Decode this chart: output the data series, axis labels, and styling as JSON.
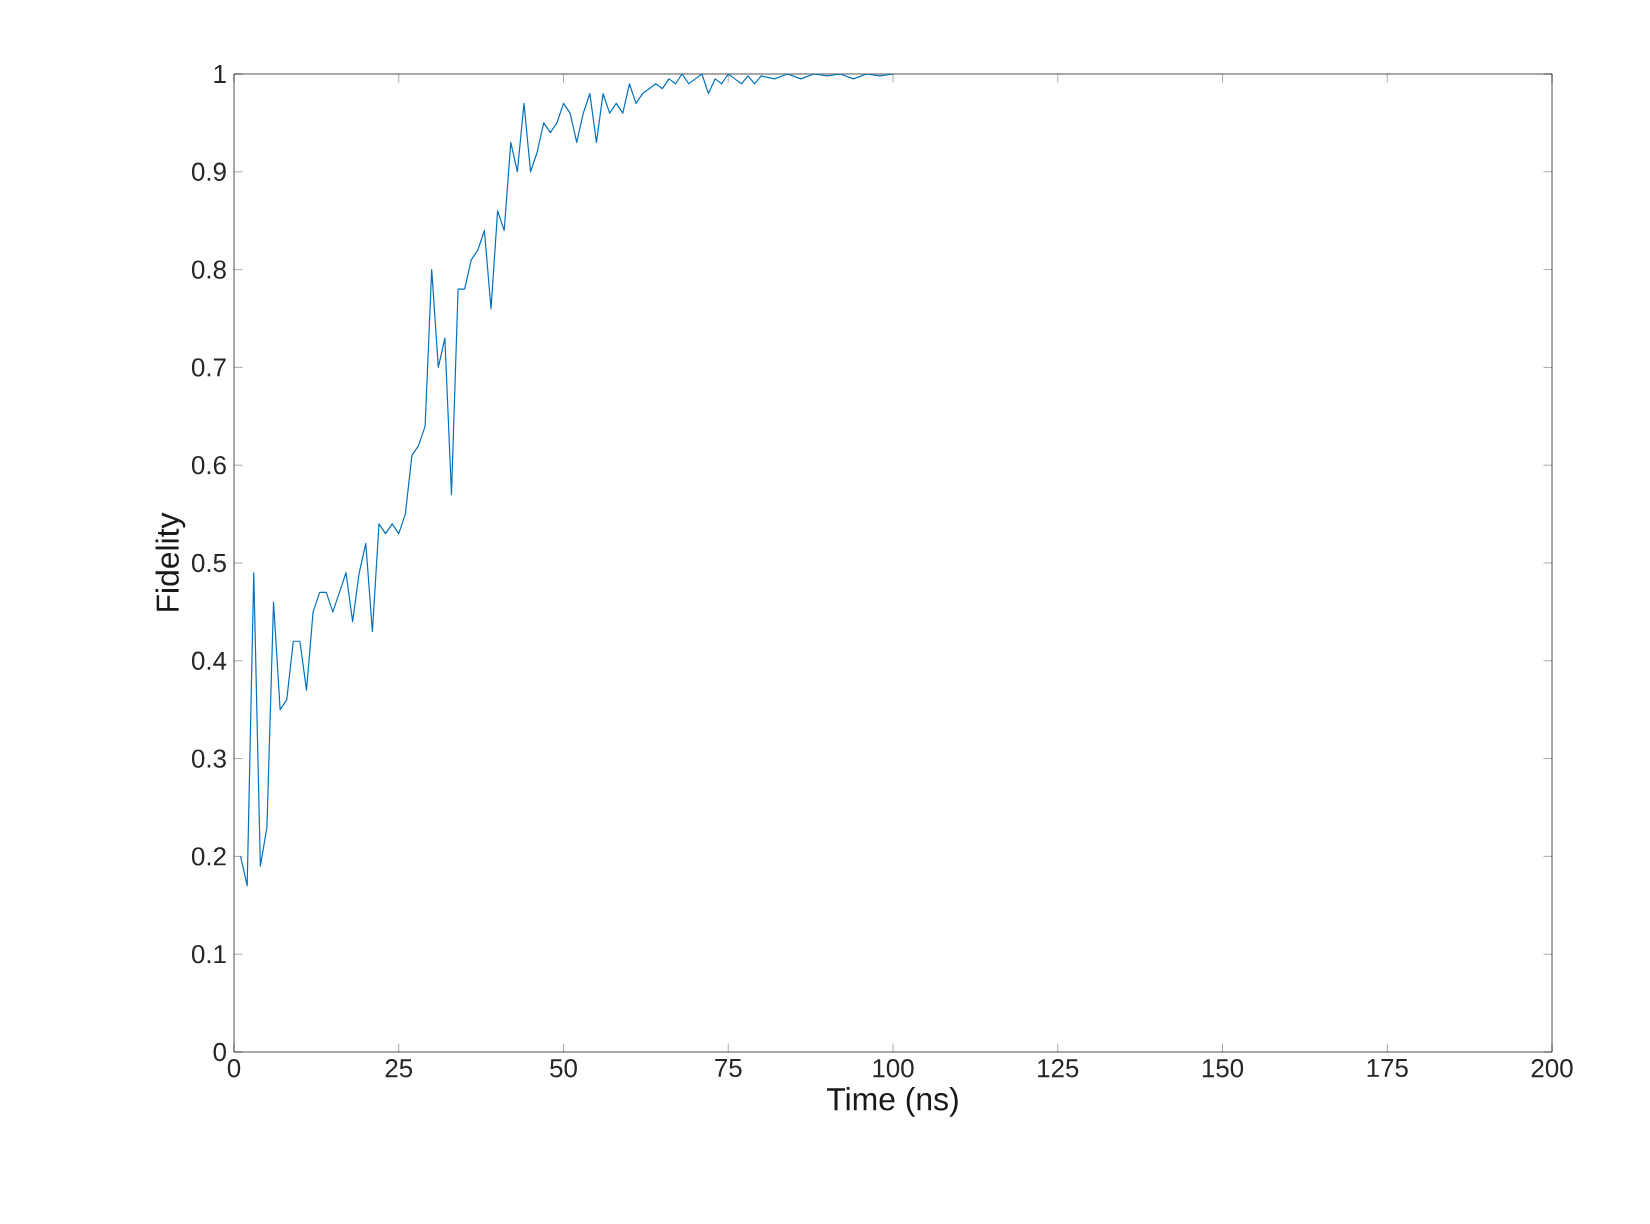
{
  "chart_data": {
    "type": "line",
    "xlabel": "Time (ns)",
    "ylabel": "Fidelity",
    "grid": false,
    "marker": "none",
    "line_style": "solid",
    "xlim": [
      0,
      200
    ],
    "ylim": [
      0,
      1
    ],
    "xticks": [
      0,
      25,
      50,
      75,
      100,
      125,
      150,
      175,
      200
    ],
    "yticks": [
      0,
      0.1,
      0.2,
      0.3,
      0.4,
      0.5,
      0.6,
      0.7,
      0.8,
      0.9,
      1
    ],
    "series": [
      {
        "color": "#0072bd",
        "x": [
          1,
          2,
          3,
          4,
          5,
          6,
          7,
          8,
          9,
          10,
          11,
          12,
          13,
          14,
          15,
          16,
          17,
          18,
          19,
          20,
          21,
          22,
          23,
          24,
          25,
          26,
          27,
          28,
          29,
          30,
          31,
          32,
          33,
          34,
          35,
          36,
          37,
          38,
          39,
          40,
          41,
          42,
          43,
          44,
          45,
          46,
          47,
          48,
          49,
          50,
          51,
          52,
          53,
          54,
          55,
          56,
          57,
          58,
          59,
          60,
          61,
          62,
          63,
          64,
          65,
          66,
          67,
          68,
          69,
          70,
          71,
          72,
          73,
          74,
          75,
          76,
          77,
          78,
          79,
          80,
          82,
          84,
          86,
          88,
          90,
          92,
          94,
          96,
          98,
          100
        ],
        "values": [
          0.2,
          0.17,
          0.49,
          0.19,
          0.23,
          0.46,
          0.35,
          0.36,
          0.42,
          0.42,
          0.37,
          0.45,
          0.47,
          0.47,
          0.45,
          0.47,
          0.49,
          0.44,
          0.49,
          0.52,
          0.43,
          0.54,
          0.53,
          0.54,
          0.53,
          0.55,
          0.61,
          0.62,
          0.64,
          0.8,
          0.7,
          0.73,
          0.57,
          0.78,
          0.78,
          0.81,
          0.82,
          0.84,
          0.76,
          0.86,
          0.84,
          0.93,
          0.9,
          0.97,
          0.9,
          0.92,
          0.95,
          0.94,
          0.95,
          0.97,
          0.96,
          0.93,
          0.96,
          0.98,
          0.93,
          0.98,
          0.96,
          0.97,
          0.96,
          0.99,
          0.97,
          0.98,
          0.985,
          0.99,
          0.985,
          0.995,
          0.99,
          1.0,
          0.99,
          0.995,
          1.0,
          0.98,
          0.995,
          0.99,
          1.0,
          0.995,
          0.99,
          0.998,
          0.99,
          0.998,
          0.995,
          1.0,
          0.995,
          1.0,
          0.998,
          1.0,
          0.995,
          1.0,
          0.998,
          1.0
        ]
      }
    ]
  }
}
